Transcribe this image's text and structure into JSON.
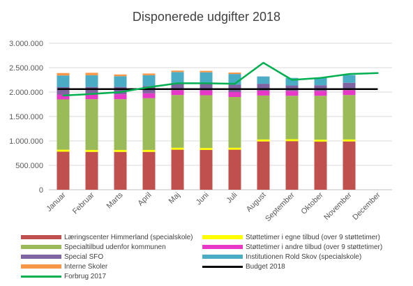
{
  "chart_data": {
    "type": "bar",
    "title": "Disponerede udgifter 2018",
    "xlabel": "",
    "ylabel": "",
    "ylim": [
      0,
      3000000
    ],
    "grid": true,
    "legend_position": "bottom",
    "y_ticks": [
      0,
      500000,
      1000000,
      1500000,
      2000000,
      2500000,
      3000000
    ],
    "y_tick_labels": [
      "0",
      "500.000",
      "1.000.000",
      "1.500.000",
      "2.000.000",
      "2.500.000",
      "3.000.000"
    ],
    "categories": [
      "Januar",
      "Februar",
      "Marts",
      "April",
      "Maj",
      "Juni",
      "Juli",
      "August",
      "September",
      "Oktober",
      "November",
      "December"
    ],
    "series": [
      {
        "name": "Læringscenter Himmerland (specialskole)",
        "type": "stacked-bar",
        "color": "#C0504D",
        "values": [
          780000,
          775000,
          775000,
          775000,
          820000,
          815000,
          820000,
          990000,
          995000,
          985000,
          990000,
          null
        ]
      },
      {
        "name": "Støttetimer i egne tilbud (over 9 støttetimer)",
        "type": "stacked-bar",
        "color": "#FFFF00",
        "values": [
          40000,
          40000,
          40000,
          40000,
          40000,
          40000,
          40000,
          40000,
          40000,
          40000,
          40000,
          null
        ]
      },
      {
        "name": "Specialtilbud udenfor kommunen",
        "type": "stacked-bar",
        "color": "#9BBB59",
        "values": [
          1030000,
          1040000,
          1040000,
          1060000,
          1080000,
          1080000,
          1040000,
          900000,
          890000,
          900000,
          910000,
          null
        ]
      },
      {
        "name": "Støttetimer i andre tilbud (over 9 støttetimer)",
        "type": "stacked-bar",
        "color": "#E838C8",
        "values": [
          100000,
          100000,
          100000,
          100000,
          100000,
          100000,
          100000,
          100000,
          100000,
          100000,
          100000,
          null
        ]
      },
      {
        "name": "Special SFO",
        "type": "stacked-bar",
        "color": "#8064A2",
        "values": [
          150000,
          150000,
          150000,
          150000,
          150000,
          150000,
          150000,
          140000,
          110000,
          115000,
          150000,
          null
        ]
      },
      {
        "name": "Institutionen Rold Skov (specialskole)",
        "type": "stacked-bar",
        "color": "#4BACC6",
        "values": [
          240000,
          240000,
          220000,
          220000,
          220000,
          220000,
          220000,
          150000,
          155000,
          155000,
          160000,
          null
        ]
      },
      {
        "name": "Interne Skoler",
        "type": "stacked-bar",
        "color": "#F79646",
        "values": [
          50000,
          50000,
          35000,
          35000,
          30000,
          30000,
          30000,
          null,
          null,
          null,
          null,
          null
        ]
      },
      {
        "name": "Budget 2018",
        "type": "line",
        "color": "#000000",
        "values": [
          2060000,
          2060000,
          2060000,
          2060000,
          2060000,
          2060000,
          2060000,
          2060000,
          2060000,
          2060000,
          2060000,
          2060000
        ]
      },
      {
        "name": "Forbrug 2017",
        "type": "line",
        "color": "#00B050",
        "values": [
          1930000,
          1960000,
          2000000,
          2100000,
          2180000,
          2180000,
          2170000,
          2600000,
          2250000,
          2290000,
          2370000,
          2390000
        ]
      }
    ]
  }
}
